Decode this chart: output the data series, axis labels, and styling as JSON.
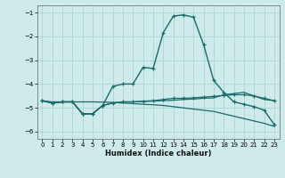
{
  "background_color": "#ceeaea",
  "grid_color": "#add4d4",
  "line_color": "#1a6b6b",
  "xlabel": "Humidex (Indice chaleur)",
  "xlim": [
    -0.5,
    23.5
  ],
  "ylim": [
    -6.3,
    -0.7
  ],
  "yticks": [
    -6,
    -5,
    -4,
    -3,
    -2,
    -1
  ],
  "xticks": [
    0,
    1,
    2,
    3,
    4,
    5,
    6,
    7,
    8,
    9,
    10,
    11,
    12,
    13,
    14,
    15,
    16,
    17,
    18,
    19,
    20,
    21,
    22,
    23
  ],
  "series": [
    {
      "y": [
        -4.7,
        -4.8,
        -4.75,
        -4.75,
        -5.25,
        -5.25,
        -4.9,
        -4.1,
        -4.0,
        -4.0,
        -3.3,
        -3.35,
        -1.85,
        -1.15,
        -1.1,
        -1.2,
        -2.35,
        -3.85,
        -4.35,
        -4.75,
        -4.85,
        -4.95,
        -5.1,
        -5.7
      ],
      "marker": true,
      "lw": 1.0
    },
    {
      "y": [
        -4.7,
        -4.8,
        -4.75,
        -4.75,
        -5.25,
        -5.25,
        -4.9,
        -4.8,
        -4.75,
        -4.75,
        -4.72,
        -4.7,
        -4.65,
        -4.6,
        -4.6,
        -4.58,
        -4.55,
        -4.52,
        -4.48,
        -4.45,
        -4.45,
        -4.5,
        -4.6,
        -4.7
      ],
      "marker": true,
      "lw": 0.9
    },
    {
      "y": [
        -4.7,
        -4.8,
        -4.75,
        -4.75,
        -5.25,
        -5.25,
        -4.9,
        -4.8,
        -4.75,
        -4.75,
        -4.73,
        -4.72,
        -4.7,
        -4.68,
        -4.65,
        -4.63,
        -4.6,
        -4.58,
        -4.45,
        -4.4,
        -4.35,
        -4.5,
        -4.65,
        -4.7
      ],
      "marker": false,
      "lw": 0.9
    },
    {
      "y": [
        -4.7,
        -4.75,
        -4.75,
        -4.75,
        -4.75,
        -4.75,
        -4.76,
        -4.77,
        -4.8,
        -4.82,
        -4.85,
        -4.87,
        -4.9,
        -4.95,
        -5.0,
        -5.05,
        -5.1,
        -5.15,
        -5.25,
        -5.35,
        -5.45,
        -5.55,
        -5.65,
        -5.78
      ],
      "marker": false,
      "lw": 0.9
    }
  ]
}
